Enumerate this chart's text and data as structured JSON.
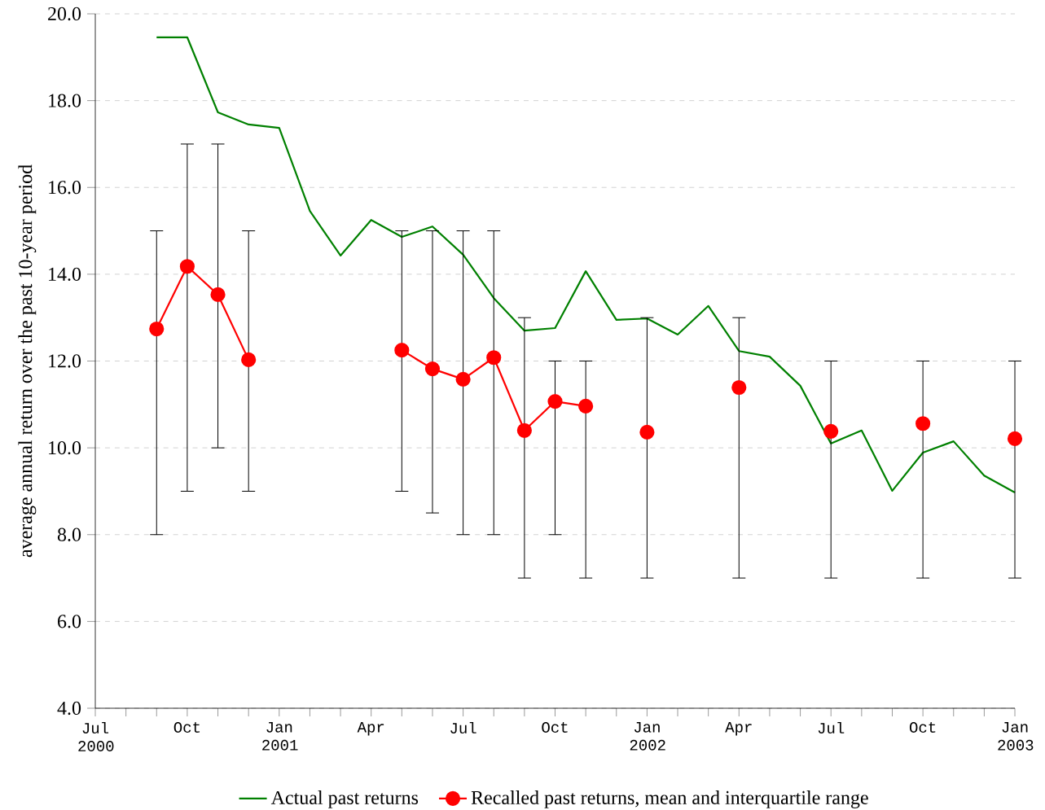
{
  "chart_data": {
    "type": "line",
    "ylabel": "average annual return over the past 10-year period",
    "x": [
      "2000-09",
      "2000-10",
      "2000-11",
      "2000-12",
      "2001-01",
      "2001-02",
      "2001-03",
      "2001-04",
      "2001-05",
      "2001-06",
      "2001-07",
      "2001-08",
      "2001-09",
      "2001-10",
      "2001-11",
      "2001-12",
      "2002-01",
      "2002-02",
      "2002-03",
      "2002-04",
      "2002-05",
      "2002-06",
      "2002-07",
      "2002-08",
      "2002-09",
      "2002-10",
      "2002-11",
      "2002-12",
      "2003-01"
    ],
    "series": [
      {
        "name": "Actual past returns",
        "color": "#008000",
        "marker": "none",
        "values": [
          19.46,
          19.46,
          17.73,
          17.45,
          17.37,
          15.46,
          14.43,
          15.25,
          14.86,
          15.1,
          14.45,
          13.45,
          12.7,
          12.76,
          14.07,
          12.95,
          12.98,
          12.61,
          13.27,
          12.23,
          12.1,
          11.43,
          10.1,
          10.4,
          9.01,
          9.89,
          10.15,
          9.36,
          8.97
        ]
      },
      {
        "name": "Recalled past returns, mean and interquartile range",
        "color": "#ff0000",
        "marker": "circle",
        "values": [
          12.74,
          14.18,
          13.53,
          12.03,
          null,
          null,
          null,
          null,
          12.25,
          11.82,
          11.58,
          12.08,
          10.4,
          11.07,
          10.96,
          null,
          10.36,
          null,
          null,
          11.39,
          null,
          null,
          10.38,
          null,
          null,
          10.56,
          null,
          null,
          10.21
        ],
        "errors": [
          [
            8,
            15
          ],
          [
            9,
            17
          ],
          [
            10,
            17
          ],
          [
            9,
            15
          ],
          null,
          null,
          null,
          null,
          [
            9,
            15
          ],
          [
            8.5,
            15
          ],
          [
            8,
            15
          ],
          [
            8,
            15
          ],
          [
            7,
            13
          ],
          [
            8,
            12
          ],
          [
            7,
            12
          ],
          null,
          [
            7,
            13
          ],
          null,
          null,
          [
            7,
            13
          ],
          null,
          null,
          [
            7,
            12
          ],
          null,
          null,
          [
            7,
            12
          ],
          null,
          null,
          [
            7,
            12
          ]
        ]
      }
    ],
    "xlim": [
      "2000-07",
      "2003-01"
    ],
    "xticks": [
      {
        "value": "2000-07",
        "label": "Jul 2000"
      },
      {
        "value": "2000-08",
        "label": null
      },
      {
        "value": "2000-09",
        "label": null
      },
      {
        "value": "2000-10",
        "label": "Oct"
      },
      {
        "value": "2000-11",
        "label": null
      },
      {
        "value": "2000-12",
        "label": null
      },
      {
        "value": "2001-01",
        "label": "Jan 2001"
      },
      {
        "value": "2001-02",
        "label": null
      },
      {
        "value": "2001-03",
        "label": null
      },
      {
        "value": "2001-04",
        "label": "Apr"
      },
      {
        "value": "2001-05",
        "label": null
      },
      {
        "value": "2001-06",
        "label": null
      },
      {
        "value": "2001-07",
        "label": "Jul"
      },
      {
        "value": "2001-08",
        "label": null
      },
      {
        "value": "2001-09",
        "label": null
      },
      {
        "value": "2001-10",
        "label": "Oct"
      },
      {
        "value": "2001-11",
        "label": null
      },
      {
        "value": "2001-12",
        "label": null
      },
      {
        "value": "2002-01",
        "label": "Jan 2002"
      },
      {
        "value": "2002-02",
        "label": null
      },
      {
        "value": "2002-03",
        "label": null
      },
      {
        "value": "2002-04",
        "label": "Apr"
      },
      {
        "value": "2002-05",
        "label": null
      },
      {
        "value": "2002-06",
        "label": null
      },
      {
        "value": "2002-07",
        "label": "Jul"
      },
      {
        "value": "2002-08",
        "label": null
      },
      {
        "value": "2002-09",
        "label": null
      },
      {
        "value": "2002-10",
        "label": "Oct"
      },
      {
        "value": "2002-11",
        "label": null
      },
      {
        "value": "2002-12",
        "label": null
      },
      {
        "value": "2003-01",
        "label": "Jan 2003"
      }
    ],
    "ylim": [
      4,
      20
    ],
    "yticks": [
      {
        "value": 4,
        "label": "4.0"
      },
      {
        "value": 6,
        "label": "6.0"
      },
      {
        "value": 8,
        "label": "8.0"
      },
      {
        "value": 10,
        "label": "10.0"
      },
      {
        "value": 12,
        "label": "12.0"
      },
      {
        "value": 14,
        "label": "14.0"
      },
      {
        "value": 16,
        "label": "16.0"
      },
      {
        "value": 18,
        "label": "18.0"
      },
      {
        "value": 20,
        "label": "20.0"
      }
    ],
    "grid": "y",
    "legend": "bottom"
  }
}
